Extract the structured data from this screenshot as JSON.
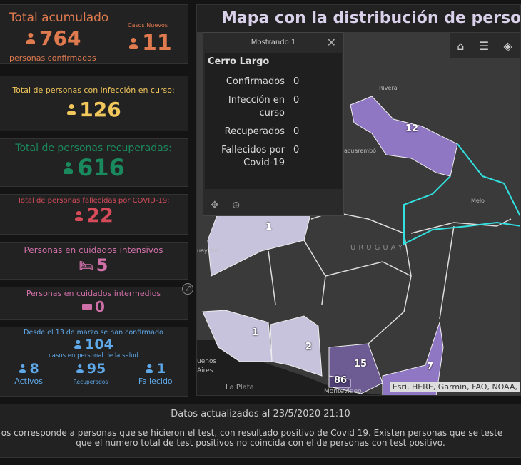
{
  "panels": {
    "total": {
      "title": "Total acumulado",
      "value": "764",
      "sub": "personas confirmadas",
      "new_label": "Casos Nuevos",
      "new_value": "11",
      "color": "#e07a4f"
    },
    "curso": {
      "title": "Total de personas con infección en curso:",
      "value": "126",
      "color": "#f2c75c"
    },
    "recuperadas": {
      "title": "Total de personas recuperadas:",
      "value": "616",
      "color": "#1a8a5e"
    },
    "fallecidas": {
      "title": "Total de personas fallecidas por COVID-19:",
      "value": "22",
      "color": "#d64b5a"
    },
    "intensivos": {
      "title": "Personas en cuidados intensivos",
      "value": "5",
      "color": "#d070a8"
    },
    "intermedios": {
      "title": "Personas en cuidados intermedios",
      "value": "0",
      "color": "#d070a8"
    },
    "salud": {
      "title": "Desde el 13 de marzo se han confirmado",
      "value": "104",
      "sub": "casos en personal de la salud",
      "color": "#5fa8e8",
      "items": [
        {
          "value": "8",
          "label": "Activos"
        },
        {
          "value": "95",
          "label": "Recuperados"
        },
        {
          "value": "1",
          "label": "Fallecido"
        }
      ]
    }
  },
  "map": {
    "title": "Mapa con la distribución de personas",
    "popup": {
      "header": "Mostrando 1",
      "name": "Cerro Largo",
      "rows": [
        {
          "k": "Confirmados",
          "v": "0"
        },
        {
          "k": "Infección en curso",
          "v": "0"
        },
        {
          "k": "Recuperados",
          "v": "0"
        },
        {
          "k": "Fallecidos por Covid-19",
          "v": "0"
        }
      ]
    },
    "labels": {
      "rivera": "Rivera",
      "tacuarembo": "acuarembó",
      "melo": "Melo",
      "uruguay": "URUGUAY",
      "gualeguaychu": "uaychú",
      "buenos_aires": "uenos Aires",
      "montevideo": "Montevideo",
      "la_plata": "La Plata"
    },
    "counts": [
      "12",
      "1",
      "1",
      "2",
      "15",
      "7",
      "86"
    ],
    "attribution": "Esri, HERE, Garmin, FAO, NOAA,"
  },
  "footer": {
    "updated": "Datos actualizados al 23/5/2020 21:10",
    "note1": "os corresponde a personas que se hicieron el test, con resultado positivo de Covid 19. Existen personas que se teste",
    "note2": "que el número total de test positivos no coincida con el de personas con test positivo."
  }
}
